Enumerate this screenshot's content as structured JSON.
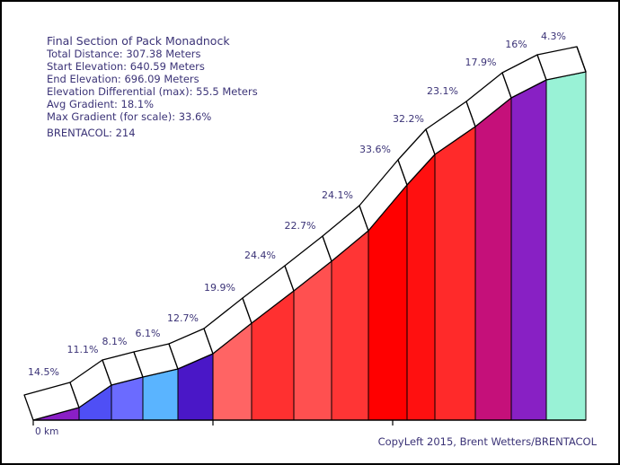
{
  "info": {
    "title": "Final Section of Pack Monadnock",
    "total_distance": "Total Distance: 307.38 Meters",
    "start_elevation": "Start Elevation: 640.59 Meters",
    "end_elevation": "End Elevation: 696.09 Meters",
    "elevation_differential": "Elevation Differential (max): 55.5 Meters",
    "avg_gradient": "Avg Gradient: 18.1%",
    "max_gradient": "Max Gradient (for scale): 33.6%",
    "brentacol": "BRENTACOL: 214"
  },
  "footer": {
    "copyleft": "CopyLeft 2015, Brent Wetters/BRENTACOL"
  },
  "chart_data": {
    "type": "area",
    "xunit": "km",
    "x_tick_labels": [
      "0 km"
    ],
    "distance_range": [
      0,
      0.30738
    ],
    "elevation_range": [
      640.59,
      696.09
    ],
    "segments": [
      {
        "gradient_label": "14.5%",
        "gradient": 14.5,
        "color": "#8a1fc6"
      },
      {
        "gradient_label": "11.1%",
        "gradient": 11.1,
        "color": "#4f4ff5"
      },
      {
        "gradient_label": "8.1%",
        "gradient": 8.1,
        "color": "#6b6bff"
      },
      {
        "gradient_label": "6.1%",
        "gradient": 6.1,
        "color": "#5ab4ff"
      },
      {
        "gradient_label": "12.7%",
        "gradient": 12.7,
        "color": "#4a17c7"
      },
      {
        "gradient_label": "19.9%",
        "gradient": 19.9,
        "color": "#ff6464"
      },
      {
        "gradient_label": "24.4%",
        "gradient": 24.4,
        "color": "#ff3030"
      },
      {
        "gradient_label": "22.7%",
        "gradient": 22.7,
        "color": "#ff5050"
      },
      {
        "gradient_label": "24.1%",
        "gradient": 24.1,
        "color": "#ff3535"
      },
      {
        "gradient_label": "33.6%",
        "gradient": 33.6,
        "color": "#ff0000"
      },
      {
        "gradient_label": "32.2%",
        "gradient": 32.2,
        "color": "#ff1010"
      },
      {
        "gradient_label": "23.1%",
        "gradient": 23.1,
        "color": "#ff2a2a"
      },
      {
        "gradient_label": "17.9%",
        "gradient": 17.9,
        "color": "#c5107a"
      },
      {
        "gradient_label": "16%",
        "gradient": 16.0,
        "color": "#8820c4"
      },
      {
        "gradient_label": "4.3%",
        "gradient": 4.3,
        "color": "#99f2d6"
      }
    ]
  }
}
